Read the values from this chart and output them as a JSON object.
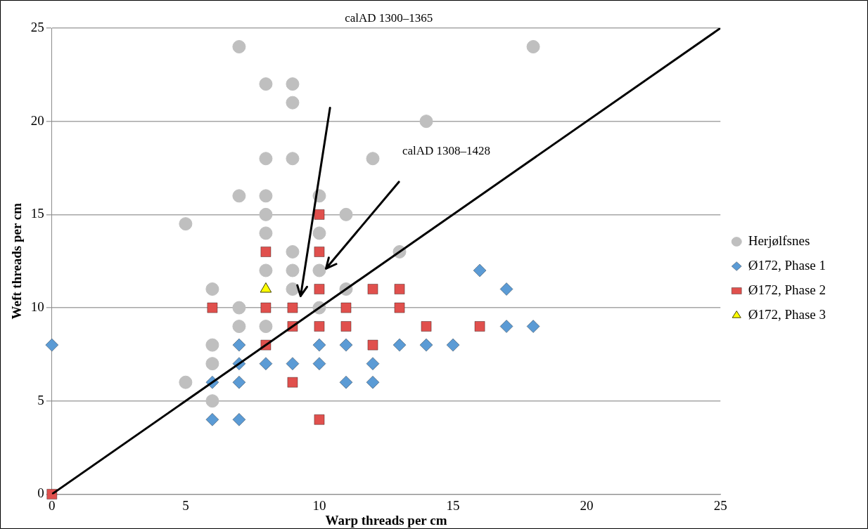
{
  "chart_data": {
    "type": "scatter",
    "xlabel": "Warp threads per cm",
    "ylabel": "Weft threads per cm",
    "xlim": [
      0,
      25
    ],
    "ylim": [
      0,
      25
    ],
    "xticks": [
      0,
      5,
      10,
      15,
      20,
      25
    ],
    "yticks": [
      0,
      5,
      10,
      15,
      20,
      25
    ],
    "grid": "y",
    "legend": "right",
    "series": [
      {
        "name": "Herjølfsnes",
        "color": "#bfbfbf",
        "marker": "circle",
        "x": [
          5,
          5,
          6,
          6,
          6,
          6,
          7,
          7,
          7,
          7,
          8,
          8,
          8,
          8,
          8,
          8,
          8,
          9,
          9,
          9,
          9,
          9,
          9,
          10,
          10,
          10,
          10,
          11,
          11,
          12,
          13,
          14,
          18
        ],
        "values": [
          6,
          14.5,
          5,
          7,
          8,
          11,
          9,
          10,
          16,
          24,
          9,
          12,
          14,
          15,
          16,
          18,
          22,
          11,
          12,
          13,
          18,
          21,
          22,
          10,
          12,
          14,
          16,
          11,
          15,
          18,
          13,
          20,
          24
        ]
      },
      {
        "name": "Ø172, Phase 1",
        "color": "#5b9bd5",
        "marker": "diamond",
        "x": [
          0,
          6,
          6,
          7,
          7,
          7,
          7,
          8,
          9,
          10,
          10,
          11,
          11,
          12,
          12,
          13,
          14,
          15,
          16,
          17,
          17,
          18
        ],
        "values": [
          8,
          4,
          6,
          4,
          6,
          7,
          8,
          7,
          7,
          7,
          8,
          6,
          8,
          6,
          7,
          8,
          8,
          8,
          12,
          9,
          11,
          9
        ]
      },
      {
        "name": "Ø172, Phase 2",
        "color": "#e0504d",
        "marker": "square",
        "x": [
          0,
          6,
          8,
          8,
          8,
          9,
          9,
          9,
          10,
          10,
          10,
          10,
          10,
          11,
          11,
          12,
          12,
          13,
          13,
          14,
          16
        ],
        "values": [
          0,
          10,
          8,
          10,
          13,
          6,
          9,
          10,
          4,
          9,
          11,
          13,
          15,
          9,
          10,
          8,
          11,
          10,
          11,
          9,
          9
        ]
      },
      {
        "name": "Ø172, Phase 3",
        "color": "#ffff00",
        "marker": "triangle",
        "x": [
          8
        ],
        "values": [
          11
        ]
      },
      {
        "type": "line",
        "color": "#000000",
        "marker": "none",
        "line_style": "solid",
        "x": [
          0,
          25
        ],
        "values": [
          0,
          25
        ]
      }
    ],
    "annotations": [
      "calAD 1300–1365",
      "calAD 1308–1428"
    ]
  }
}
